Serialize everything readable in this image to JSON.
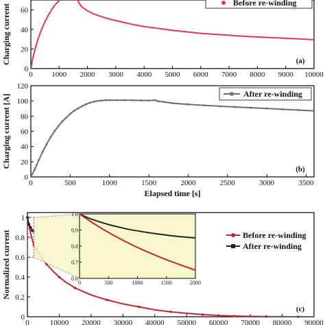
{
  "chart_data": [
    {
      "panel": "a",
      "type": "line",
      "annotation": "(a)",
      "ylabel": "Charging current",
      "xlim": [
        0,
        10000
      ],
      "ylim": [
        0,
        70
      ],
      "xticks": [
        0,
        1000,
        2000,
        3000,
        4000,
        5000,
        6000,
        7000,
        8000,
        9000,
        10000
      ],
      "yticks": [
        0,
        20,
        40,
        60
      ],
      "legend": "top-right",
      "series": [
        {
          "name": "Before re-winding",
          "color": "#e8344e",
          "x": [
            0,
            60,
            150,
            250,
            350,
            450,
            550,
            650,
            750,
            850,
            950,
            1050,
            1150,
            1250,
            1350,
            1450,
            1500,
            1550,
            1600,
            1650,
            1700,
            1800,
            1900,
            2000,
            2200,
            2400,
            2600,
            2800,
            3000,
            3300,
            3600,
            4000,
            4500,
            5000,
            5500,
            6000,
            6500,
            7000,
            7500,
            8000,
            8500,
            9000,
            9500,
            10000
          ],
          "values": [
            0,
            10,
            20,
            30,
            38,
            45,
            51,
            56,
            61,
            65,
            68,
            71,
            73,
            75,
            76,
            77,
            77.5,
            78,
            78,
            70,
            67,
            63,
            61,
            59,
            56,
            54,
            52,
            50.5,
            49,
            47,
            45,
            43,
            41,
            39,
            37.5,
            36,
            35,
            34,
            33,
            32.3,
            31.6,
            31,
            30.3,
            29.5
          ]
        }
      ]
    },
    {
      "panel": "b",
      "type": "line",
      "annotation": "(b)",
      "ylabel": "Charging current [A]",
      "xlabel": "Elapsed time [s]",
      "xlim": [
        0,
        3600
      ],
      "ylim": [
        0,
        120
      ],
      "xticks": [
        0,
        500,
        1000,
        1500,
        2000,
        2500,
        3000,
        3500
      ],
      "yticks": [
        0,
        20,
        40,
        60,
        80,
        100,
        120
      ],
      "legend": "top-right",
      "series": [
        {
          "name": "After re-winding",
          "color": "#6b6b6b",
          "x": [
            0,
            50,
            100,
            150,
            200,
            250,
            300,
            350,
            400,
            450,
            500,
            550,
            600,
            650,
            700,
            750,
            800,
            850,
            900,
            950,
            1000,
            1100,
            1200,
            1300,
            1400,
            1500,
            1580,
            1620,
            1700,
            1800,
            2000,
            2200,
            2400,
            2600,
            2800,
            3000,
            3200,
            3400,
            3600
          ],
          "values": [
            0,
            10,
            22,
            33,
            43,
            52,
            60,
            67,
            73,
            78,
            83,
            87,
            90,
            93,
            95.5,
            97.5,
            99,
            100,
            100.5,
            101,
            101,
            101,
            101,
            100.8,
            100.6,
            100.5,
            101,
            99.5,
            98.5,
            97,
            95.5,
            94.2,
            93,
            92,
            91,
            90,
            89,
            88,
            87
          ]
        }
      ]
    },
    {
      "panel": "c",
      "type": "line",
      "annotation": "(c)",
      "ylabel": "Normalized current",
      "xlim": [
        0,
        90000
      ],
      "ylim": [
        0,
        1.05
      ],
      "xticks": [
        0,
        10000,
        20000,
        30000,
        40000,
        50000,
        60000,
        70000,
        80000,
        90000
      ],
      "yticks": [
        0,
        0.2,
        0.4,
        0.6,
        0.8,
        1.0
      ],
      "legend": "top-right",
      "series": [
        {
          "name": "Before re-winding",
          "color": "#c0262d",
          "x": [
            0,
            1000,
            2000,
            4000,
            6000,
            8000,
            10000,
            12000,
            15000,
            20000,
            25000,
            30000,
            35000,
            40000,
            45000,
            50000,
            55000,
            60000,
            65000,
            70000,
            75000,
            80000,
            85000,
            90000
          ],
          "values": [
            1.0,
            0.84,
            0.72,
            0.62,
            0.53,
            0.46,
            0.4,
            0.35,
            0.29,
            0.22,
            0.17,
            0.13,
            0.1,
            0.07,
            0.05,
            0.035,
            0.022,
            0.013,
            0.007,
            0.004,
            0.002,
            0.001,
            0.0,
            0.0
          ]
        },
        {
          "name": "After re-winding",
          "color": "#222222",
          "x": [
            0,
            500,
            1000,
            1500,
            2000
          ],
          "values": [
            1.0,
            0.93,
            0.9,
            0.87,
            0.86
          ]
        }
      ],
      "inset": {
        "xlim": [
          0,
          2000
        ],
        "ylim": [
          0.6,
          1.0
        ],
        "xticks": [
          0,
          500,
          1000,
          1500,
          2000
        ],
        "yticks": [
          0.6,
          0.7,
          0.8,
          0.9,
          1.0
        ],
        "series": [
          {
            "name": "After re-winding",
            "color": "#222222",
            "x": [
              0,
              100,
              200,
              300,
              400,
              500,
              600,
              700,
              800,
              900,
              1000,
              1200,
              1400,
              1600,
              1800,
              2000
            ],
            "values": [
              1.0,
              0.983,
              0.968,
              0.956,
              0.945,
              0.934,
              0.925,
              0.916,
              0.908,
              0.901,
              0.895,
              0.883,
              0.873,
              0.864,
              0.857,
              0.851
            ]
          },
          {
            "name": "Before re-winding",
            "color": "#c0262d",
            "x": [
              0,
              100,
              200,
              300,
              400,
              500,
              600,
              700,
              800,
              900,
              1000,
              1200,
              1400,
              1600,
              1800,
              2000
            ],
            "values": [
              1.0,
              0.975,
              0.951,
              0.928,
              0.906,
              0.885,
              0.865,
              0.846,
              0.827,
              0.809,
              0.792,
              0.76,
              0.73,
              0.702,
              0.676,
              0.651
            ]
          }
        ]
      }
    }
  ]
}
